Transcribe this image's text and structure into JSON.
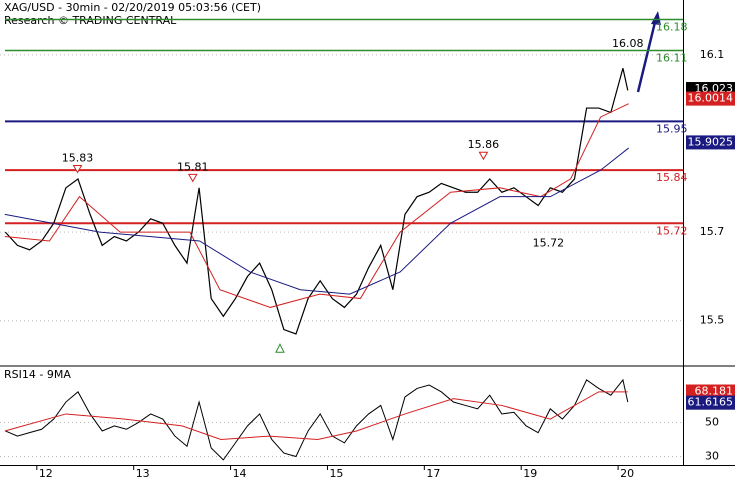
{
  "chart_data": [
    {
      "type": "line",
      "title": "XAG/USD - 30min - 02/20/2019 05:03:56 (CET)",
      "subtitle": "Research © TRADING CENTRAL",
      "x": [
        -0.325,
        -0.2,
        -0.075,
        0.05,
        0.175,
        0.3,
        0.425,
        0.55,
        0.675,
        0.8,
        0.925,
        1.05,
        1.175,
        1.3,
        1.425,
        1.55,
        1.675,
        1.8,
        1.925,
        2.05,
        2.175,
        2.3,
        2.425,
        2.55,
        2.675,
        2.8,
        2.925,
        3.05,
        3.175,
        3.3,
        3.425,
        3.55,
        3.675,
        3.8,
        3.925,
        4.05,
        4.175,
        4.3,
        4.425,
        4.55,
        4.675,
        4.8,
        4.925,
        5.05,
        5.175,
        5.3,
        5.425,
        5.55,
        5.675,
        5.8,
        5.925,
        6.05,
        6.1
      ],
      "series": [
        {
          "color": "#000000",
          "width": 1.2,
          "values": [
            15.7,
            15.67,
            15.66,
            15.68,
            15.72,
            15.8,
            15.82,
            15.74,
            15.67,
            15.69,
            15.68,
            15.7,
            15.73,
            15.72,
            15.67,
            15.63,
            15.8,
            15.55,
            15.51,
            15.55,
            15.6,
            15.63,
            15.57,
            15.48,
            15.47,
            15.55,
            15.59,
            15.55,
            15.53,
            15.56,
            15.62,
            15.67,
            15.57,
            15.74,
            15.78,
            15.79,
            15.81,
            15.8,
            15.79,
            15.79,
            15.82,
            15.79,
            15.8,
            15.78,
            15.76,
            15.8,
            15.79,
            15.82,
            15.98,
            15.98,
            15.97,
            16.07,
            16.02
          ]
        },
        {
          "color": "#d42020",
          "width": 1,
          "x": [
            -0.33,
            0.13,
            0.44,
            0.86,
            1.58,
            1.89,
            2.41,
            2.92,
            3.34,
            3.75,
            4.27,
            4.78,
            5.2,
            5.51,
            5.82,
            6.11
          ],
          "values": [
            15.69,
            15.68,
            15.78,
            15.7,
            15.7,
            15.57,
            15.53,
            15.56,
            15.55,
            15.7,
            15.79,
            15.8,
            15.78,
            15.82,
            15.96,
            15.99
          ]
        },
        {
          "color": "#1a1a80",
          "width": 1,
          "x": [
            -0.33,
            0.65,
            1.68,
            2.2,
            2.72,
            3.23,
            3.75,
            4.27,
            4.78,
            5.3,
            5.82,
            6.11
          ],
          "values": [
            15.74,
            15.7,
            15.68,
            15.61,
            15.57,
            15.56,
            15.61,
            15.72,
            15.78,
            15.78,
            15.84,
            15.89
          ]
        }
      ],
      "levels": [
        {
          "value": 16.18,
          "color": "#2e8b2e",
          "width": 1.5
        },
        {
          "value": 16.11,
          "color": "#2e8b2e",
          "width": 1.5
        },
        {
          "value": 15.95,
          "color": "#1a1a80",
          "width": 2
        },
        {
          "value": 15.84,
          "color": "#d42020",
          "width": 2
        },
        {
          "value": 15.72,
          "color": "#d42020",
          "width": 2
        }
      ],
      "annotations": [
        {
          "text": "15.83",
          "x": 0.42,
          "y": 15.83,
          "marker": "down"
        },
        {
          "text": "15.81",
          "x": 1.61,
          "y": 15.81,
          "marker": "down"
        },
        {
          "text": "15.86",
          "x": 4.61,
          "y": 15.86,
          "marker": "down"
        },
        {
          "text": "16.08",
          "x": 6.1,
          "y": 16.08,
          "valign": "top"
        },
        {
          "text": "15.72",
          "x": 5.28,
          "y": 15.72,
          "valign": "bottom"
        },
        {
          "x": 2.51,
          "y": 15.44,
          "marker": "up"
        }
      ],
      "price_boxes": [
        {
          "value": 16.023,
          "color": "#000000"
        },
        {
          "value": 16.0014,
          "color": "#d42020"
        },
        {
          "value": 15.9025,
          "color": "#1a1a80"
        }
      ],
      "xlim": [
        -0.38,
        6.67
      ],
      "ylim": [
        15.4,
        16.224
      ],
      "yticks": [
        15.5,
        15.7,
        16.1
      ],
      "grid": true
    },
    {
      "type": "line",
      "title": "RSI14 - 9MA",
      "x": [
        -0.325,
        -0.2,
        -0.075,
        0.05,
        0.175,
        0.3,
        0.425,
        0.55,
        0.675,
        0.8,
        0.925,
        1.05,
        1.175,
        1.3,
        1.425,
        1.55,
        1.675,
        1.8,
        1.925,
        2.05,
        2.175,
        2.3,
        2.425,
        2.55,
        2.675,
        2.8,
        2.925,
        3.05,
        3.175,
        3.3,
        3.425,
        3.55,
        3.675,
        3.8,
        3.925,
        4.05,
        4.175,
        4.3,
        4.425,
        4.55,
        4.675,
        4.8,
        4.925,
        5.05,
        5.175,
        5.3,
        5.425,
        5.55,
        5.675,
        5.8,
        5.925,
        6.05,
        6.1
      ],
      "series": [
        {
          "color": "#000000",
          "width": 1,
          "values": [
            45,
            42,
            44,
            46,
            52,
            62,
            68,
            55,
            45,
            48,
            46,
            50,
            55,
            52,
            42,
            36,
            62,
            35,
            28,
            38,
            48,
            55,
            40,
            32,
            30,
            45,
            55,
            42,
            38,
            48,
            55,
            60,
            40,
            65,
            70,
            72,
            68,
            62,
            60,
            58,
            66,
            55,
            56,
            48,
            44,
            58,
            52,
            60,
            75,
            70,
            66,
            75,
            62
          ]
        },
        {
          "color": "#d42020",
          "width": 1,
          "x": [
            -0.33,
            0.3,
            0.9,
            1.5,
            1.9,
            2.4,
            2.9,
            3.3,
            3.8,
            4.3,
            4.8,
            5.3,
            5.8,
            6.1
          ],
          "values": [
            45,
            55,
            52,
            48,
            40,
            42,
            40,
            45,
            55,
            64,
            60,
            52,
            68,
            68
          ]
        }
      ],
      "price_boxes": [
        {
          "value": 68.181,
          "color": "#d42020"
        },
        {
          "value": 61.6165,
          "color": "#1a1a80"
        }
      ],
      "xlim": [
        -0.38,
        6.67
      ],
      "ylim": [
        25,
        82
      ],
      "yticks": [
        30,
        50
      ],
      "grid": true,
      "xticks": [
        {
          "value": 0,
          "label": "12"
        },
        {
          "value": 1,
          "label": "13"
        },
        {
          "value": 2,
          "label": "14"
        },
        {
          "value": 3,
          "label": "15"
        },
        {
          "value": 4,
          "label": "17"
        },
        {
          "value": 5,
          "label": "19"
        },
        {
          "value": 6,
          "label": "20"
        }
      ]
    }
  ]
}
